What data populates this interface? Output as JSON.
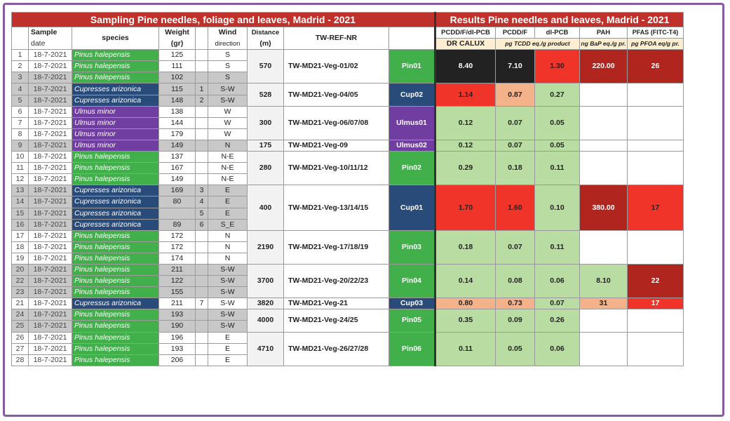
{
  "left_title": "Sampling Pine needles, foliage and leaves, Madrid - 2021",
  "right_title": "Results  Pine needles and leaves, Madrid - 2021",
  "headers": {
    "sample": "Sample",
    "date": "date",
    "species": "species",
    "weight": "Weight",
    "weight_unit": "(gr)",
    "wind": "Wind",
    "wind2": "direction",
    "distance": "Distance",
    "distance_unit": "(m)",
    "ref": "TW-REF-NR",
    "pcdd_dl": "PCDD/F/dl-PCB",
    "pcdd": "PCDD/F",
    "dlpcb": "dl-PCB",
    "pah": "PAH",
    "pfas": "PFAS (FITC-T4)",
    "drcalux": "DR CALUX",
    "teq": "pg TCDD eq./g product",
    "bap": "ng BaP eq./g pr.",
    "pfoa": "pg PFOA eq/g pr."
  },
  "rows": [
    {
      "n": "1",
      "date": "18-7-2021",
      "species": "Pinus halepensis",
      "type": "pin",
      "w": "125",
      "k": "",
      "wind": "S",
      "gray": false
    },
    {
      "n": "2",
      "date": "18-7-2021",
      "species": "Pinus halepensis",
      "type": "pin",
      "w": "111",
      "k": "",
      "wind": "S",
      "gray": false
    },
    {
      "n": "3",
      "date": "18-7-2021",
      "species": "Pinus halepensis",
      "type": "pin",
      "w": "102",
      "k": "",
      "wind": "S",
      "gray": true
    },
    {
      "n": "4",
      "date": "18-7-2021",
      "species": "Cupresses arizonica",
      "type": "cup",
      "w": "115",
      "k": "1",
      "wind": "S-W",
      "gray": true
    },
    {
      "n": "5",
      "date": "18-7-2021",
      "species": "Cupresses arizonica",
      "type": "cup",
      "w": "148",
      "k": "2",
      "wind": "S-W",
      "gray": true
    },
    {
      "n": "6",
      "date": "18-7-2021",
      "species": "Ulmus minor",
      "type": "ulm",
      "w": "138",
      "k": "",
      "wind": "W",
      "gray": false
    },
    {
      "n": "7",
      "date": "18-7-2021",
      "species": "Ulmus minor",
      "type": "ulm",
      "w": "144",
      "k": "",
      "wind": "W",
      "gray": false
    },
    {
      "n": "8",
      "date": "18-7-2021",
      "species": "Ulmus minor",
      "type": "ulm",
      "w": "179",
      "k": "",
      "wind": "W",
      "gray": false
    },
    {
      "n": "9",
      "date": "18-7-2021",
      "species": "Ulmus minor",
      "type": "ulm",
      "w": "149",
      "k": "",
      "wind": "N",
      "gray": true
    },
    {
      "n": "10",
      "date": "18-7-2021",
      "species": "Pinus halepensis",
      "type": "pin",
      "w": "137",
      "k": "",
      "wind": "N-E",
      "gray": false
    },
    {
      "n": "11",
      "date": "18-7-2021",
      "species": "Pinus halepensis",
      "type": "pin",
      "w": "167",
      "k": "",
      "wind": "N-E",
      "gray": false
    },
    {
      "n": "12",
      "date": "18-7-2021",
      "species": "Pinus halepensis",
      "type": "pin",
      "w": "149",
      "k": "",
      "wind": "N-E",
      "gray": false
    },
    {
      "n": "13",
      "date": "18-7-2021",
      "species": "Cupresses arizonica",
      "type": "cup",
      "w": "169",
      "k": "3",
      "wind": "E",
      "gray": true
    },
    {
      "n": "14",
      "date": "18-7-2021",
      "species": "Cupresses arizonica",
      "type": "cup",
      "w": "80",
      "k": "4",
      "wind": "E",
      "gray": true
    },
    {
      "n": "15",
      "date": "18-7-2021",
      "species": "Cupresses arizonica",
      "type": "cup",
      "w": "",
      "k": "5",
      "wind": "E",
      "gray": true
    },
    {
      "n": "16",
      "date": "18-7-2021",
      "species": "Cupresses arizonica",
      "type": "cup",
      "w": "89",
      "k": "6",
      "wind": "S_E",
      "gray": true
    },
    {
      "n": "17",
      "date": "18-7-2021",
      "species": "Pinus halepensis",
      "type": "pin",
      "w": "172",
      "k": "",
      "wind": "N",
      "gray": false
    },
    {
      "n": "18",
      "date": "18-7-2021",
      "species": "Pinus halepensis",
      "type": "pin",
      "w": "172",
      "k": "",
      "wind": "N",
      "gray": false
    },
    {
      "n": "19",
      "date": "18-7-2021",
      "species": "Pinus halepensis",
      "type": "pin",
      "w": "174",
      "k": "",
      "wind": "N",
      "gray": false
    },
    {
      "n": "20",
      "date": "18-7-2021",
      "species": "Pinus halepensis",
      "type": "pin",
      "w": "211",
      "k": "",
      "wind": "S-W",
      "gray": true
    },
    {
      "n": "22",
      "date": "18-7-2021",
      "species": "Pinus halepensis",
      "type": "pin",
      "w": "122",
      "k": "",
      "wind": "S-W",
      "gray": true
    },
    {
      "n": "23",
      "date": "18-7-2021",
      "species": "Pinus halepensis",
      "type": "pin",
      "w": "155",
      "k": "",
      "wind": "S-W",
      "gray": true
    },
    {
      "n": "21",
      "date": "18-7-2021",
      "species": "Cupressus arizonica",
      "type": "cup",
      "w": "211",
      "k": "7",
      "wind": "S-W",
      "gray": false
    },
    {
      "n": "24",
      "date": "18-7-2021",
      "species": "Pinus halepensis",
      "type": "pin",
      "w": "193",
      "k": "",
      "wind": "S-W",
      "gray": true
    },
    {
      "n": "25",
      "date": "18-7-2021",
      "species": "Pinus halepensis",
      "type": "pin",
      "w": "190",
      "k": "",
      "wind": "S-W",
      "gray": true
    },
    {
      "n": "26",
      "date": "18-7-2021",
      "species": "Pinus halepensis",
      "type": "pin",
      "w": "196",
      "k": "",
      "wind": "E",
      "gray": false
    },
    {
      "n": "27",
      "date": "18-7-2021",
      "species": "Pinus halepensis",
      "type": "pin",
      "w": "193",
      "k": "",
      "wind": "E",
      "gray": false
    },
    {
      "n": "28",
      "date": "18-7-2021",
      "species": "Pinus halepensis",
      "type": "pin",
      "w": "206",
      "k": "",
      "wind": "E",
      "gray": false
    }
  ],
  "groups": [
    {
      "span": 3,
      "distance": "570",
      "ref": "TW-MD21-Veg-01/02",
      "code": "Pin01",
      "ctype": "pin",
      "v1": "8.40",
      "c1": "black",
      "v2": "7.10",
      "c2": "black",
      "v3": "1.30",
      "c3": "red",
      "v4": "220.00",
      "c4": "dred",
      "v5": "26",
      "c5": "dred"
    },
    {
      "span": 2,
      "distance": "528",
      "ref": "TW-MD21-Veg-04/05",
      "code": "Cup02",
      "ctype": "cup",
      "v1": "1.14",
      "c1": "red",
      "v2": "0.87",
      "c2": "salmon",
      "v3": "0.27",
      "c3": "green",
      "v4": "",
      "c4": "white",
      "v5": "",
      "c5": "white"
    },
    {
      "span": 3,
      "distance": "300",
      "ref": "TW-MD21-Veg-06/07/08",
      "code": "Ulmus01",
      "ctype": "ulm",
      "v1": "0.12",
      "c1": "green",
      "v2": "0.07",
      "c2": "green",
      "v3": "0.05",
      "c3": "green",
      "v4": "",
      "c4": "white",
      "v5": "",
      "c5": "white"
    },
    {
      "span": 1,
      "distance": "175",
      "ref": "TW-MD21-Veg-09",
      "code": "Ulmus02",
      "ctype": "ulm",
      "v1": "0.12",
      "c1": "green",
      "v2": "0.07",
      "c2": "green",
      "v3": "0.05",
      "c3": "green",
      "v4": "",
      "c4": "white",
      "v5": "",
      "c5": "white"
    },
    {
      "span": 3,
      "distance": "280",
      "ref": "TW-MD21-Veg-10/11/12",
      "code": "Pin02",
      "ctype": "pin",
      "v1": "0.29",
      "c1": "green",
      "v2": "0.18",
      "c2": "green",
      "v3": "0.11",
      "c3": "green",
      "v4": "",
      "c4": "white",
      "v5": "",
      "c5": "white"
    },
    {
      "span": 4,
      "distance": "400",
      "ref": "TW-MD21-Veg-13/14/15",
      "code": "Cup01",
      "ctype": "cup",
      "v1": "1.70",
      "c1": "red",
      "v2": "1.60",
      "c2": "red",
      "v3": "0.10",
      "c3": "green",
      "v4": "380.00",
      "c4": "dred",
      "v5": "17",
      "c5": "red"
    },
    {
      "span": 3,
      "distance": "2190",
      "ref": "TW-MD21-Veg-17/18/19",
      "code": "Pin03",
      "ctype": "pin",
      "v1": "0.18",
      "c1": "green",
      "v2": "0.07",
      "c2": "green",
      "v3": "0.11",
      "c3": "green",
      "v4": "",
      "c4": "white",
      "v5": "",
      "c5": "white"
    },
    {
      "span": 3,
      "distance": "3700",
      "ref": "TW-MD21-Veg-20/22/23",
      "code": "Pin04",
      "ctype": "pin",
      "v1": "0.14",
      "c1": "green",
      "v2": "0.08",
      "c2": "green",
      "v3": "0.06",
      "c3": "green",
      "v4": "8.10",
      "c4": "green",
      "v5": "22",
      "c5": "dred"
    },
    {
      "span": 1,
      "distance": "3820",
      "ref": "TW-MD21-Veg-21",
      "code": "Cup03",
      "ctype": "cup",
      "v1": "0.80",
      "c1": "salmon",
      "v2": "0.73",
      "c2": "salmon",
      "v3": "0.07",
      "c3": "green",
      "v4": "31",
      "c4": "salmon",
      "v5": "17",
      "c5": "redw"
    },
    {
      "span": 2,
      "distance": "4000",
      "ref": "TW-MD21-Veg-24/25",
      "code": "Pin05",
      "ctype": "pin",
      "v1": "0.35",
      "c1": "green",
      "v2": "0.09",
      "c2": "green",
      "v3": "0.26",
      "c3": "green",
      "v4": "",
      "c4": "white",
      "v5": "",
      "c5": "white"
    },
    {
      "span": 3,
      "distance": "4710",
      "ref": "TW-MD21-Veg-26/27/28",
      "code": "Pin06",
      "ctype": "pin",
      "v1": "0.11",
      "c1": "green",
      "v2": "0.05",
      "c2": "green",
      "v3": "0.06",
      "c3": "green",
      "v4": "",
      "c4": "white",
      "v5": "",
      "c5": "white"
    }
  ]
}
